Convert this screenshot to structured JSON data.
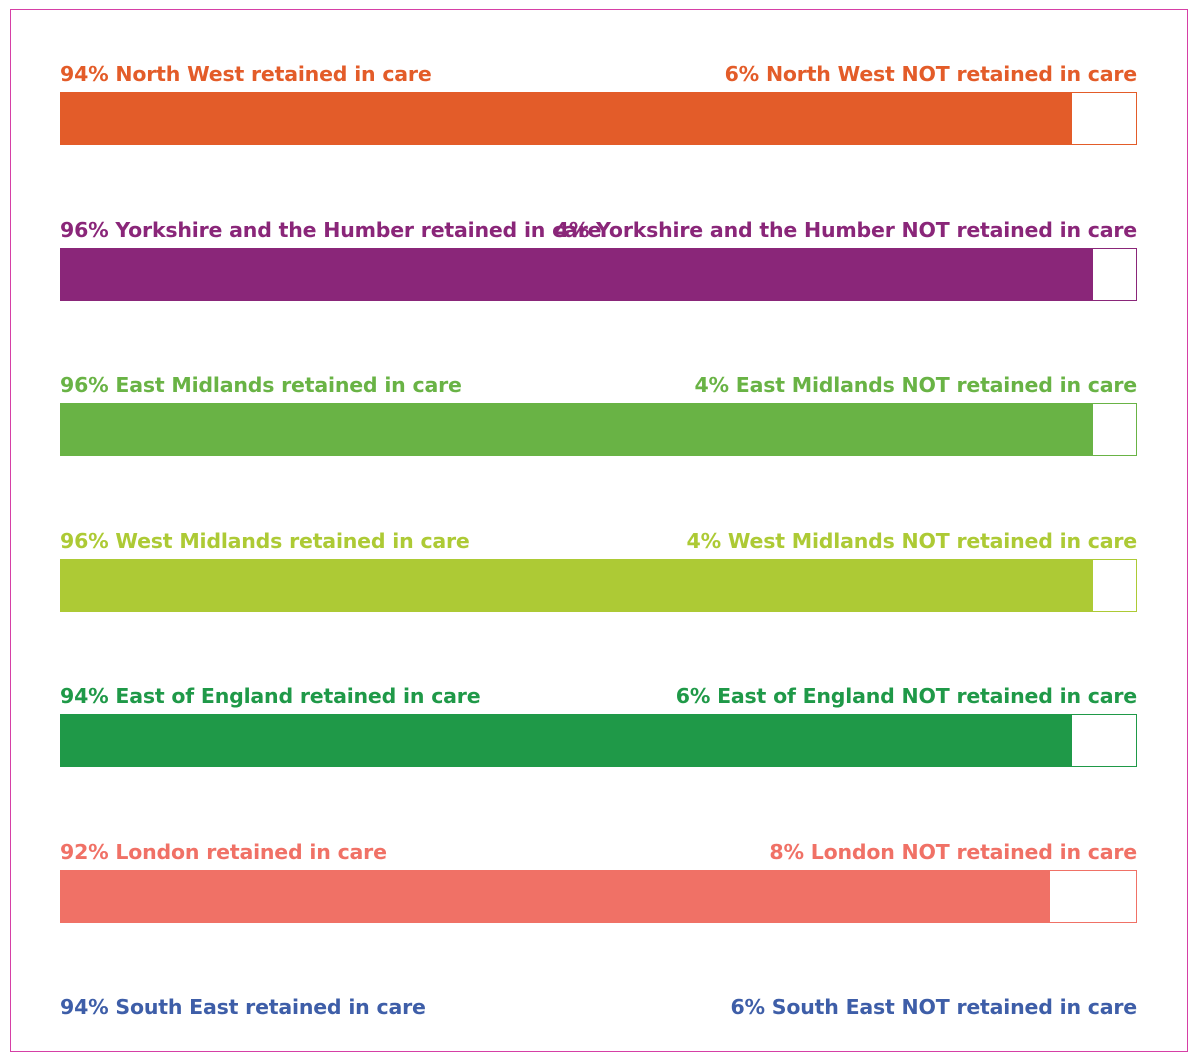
{
  "chart_data": {
    "type": "bar",
    "stacked": true,
    "orientation": "horizontal",
    "xlim": [
      0,
      100
    ],
    "rows": [
      {
        "region": "North West",
        "retained": 94,
        "not_retained": 6,
        "retained_label": "94% North West retained in care",
        "not_retained_label": "6% North West NOT retained in care",
        "color": "#e35c29"
      },
      {
        "region": "Yorkshire and the Humber",
        "retained": 96,
        "not_retained": 4,
        "retained_label": "96% Yorkshire and the Humber retained in care",
        "not_retained_label": "4% Yorkshire and the Humber NOT retained in care",
        "color": "#8a2679"
      },
      {
        "region": "East Midlands",
        "retained": 96,
        "not_retained": 4,
        "retained_label": "96% East Midlands retained in care",
        "not_retained_label": "4% East Midlands NOT retained in care",
        "color": "#69b345"
      },
      {
        "region": "West Midlands",
        "retained": 96,
        "not_retained": 4,
        "retained_label": "96% West Midlands retained in care",
        "not_retained_label": "4% West Midlands NOT retained in care",
        "color": "#adca35"
      },
      {
        "region": "East of England",
        "retained": 94,
        "not_retained": 6,
        "retained_label": "94% East of England retained in care",
        "not_retained_label": "6% East of England NOT retained in care",
        "color": "#1f9948"
      },
      {
        "region": "London",
        "retained": 92,
        "not_retained": 8,
        "retained_label": "92% London retained in care",
        "not_retained_label": "8% London NOT retained in care",
        "color": "#f07166"
      },
      {
        "region": "South East",
        "retained": 94,
        "not_retained": 6,
        "retained_label": "94% South East retained in care",
        "not_retained_label": "6% South East NOT retained in care",
        "color": "#3e5ea8"
      }
    ]
  }
}
